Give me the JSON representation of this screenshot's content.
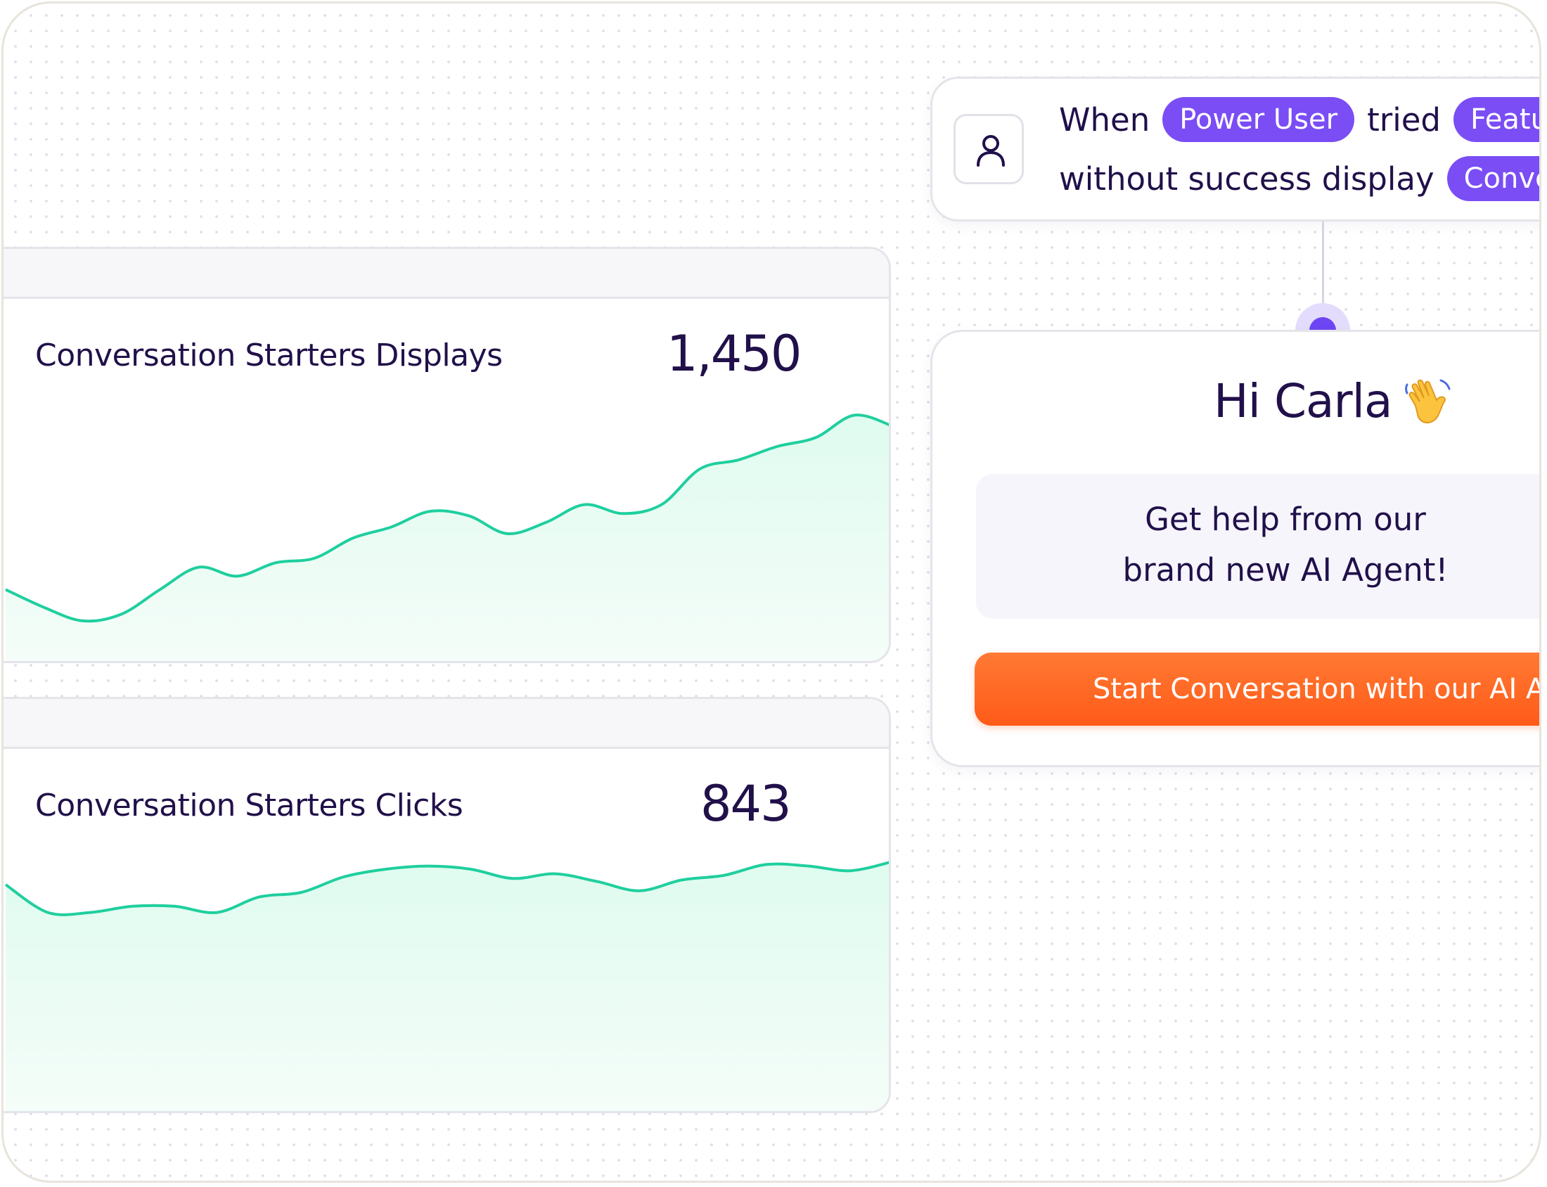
{
  "colors": {
    "accent": "#7a4df5",
    "chart_line": "#1fcf9e",
    "chart_fill": "#dffbef",
    "cta": "#ff6420",
    "text": "#21104a"
  },
  "metrics": [
    {
      "title": "Conversation Starters Displays",
      "value": "1,450"
    },
    {
      "title": "Conversation Starters Clicks",
      "value": "843"
    }
  ],
  "chart_data": [
    {
      "type": "area",
      "series": [
        {
          "values": [
            0.2,
            0.12,
            0.06,
            0.09,
            0.2,
            0.3,
            0.26,
            0.32,
            0.34,
            0.43,
            0.48,
            0.55,
            0.53,
            0.45,
            0.5,
            0.58,
            0.54,
            0.58,
            0.74,
            0.78,
            0.84,
            0.88,
            0.98,
            0.93
          ]
        }
      ]
    },
    {
      "type": "area",
      "series": [
        {
          "values": [
            0.8,
            0.62,
            0.62,
            0.66,
            0.66,
            0.62,
            0.72,
            0.75,
            0.85,
            0.9,
            0.92,
            0.9,
            0.84,
            0.87,
            0.82,
            0.76,
            0.83,
            0.86,
            0.93,
            0.92,
            0.89,
            0.95
          ]
        }
      ]
    }
  ],
  "trigger": {
    "word_when": "When",
    "pill_segment": "Power User",
    "word_tried": "tried",
    "pill_feature": "Feature",
    "word_without": "without success display",
    "pill_action": "Conversa",
    "avatar_icon": "user-icon"
  },
  "preview": {
    "greeting": "Hi Carla",
    "greeting_icon": "waving-hand-icon",
    "help_line_1": "Get help from our",
    "help_line_2": "brand new AI Agent!",
    "cta_label": "Start Conversation with our AI Agent"
  }
}
